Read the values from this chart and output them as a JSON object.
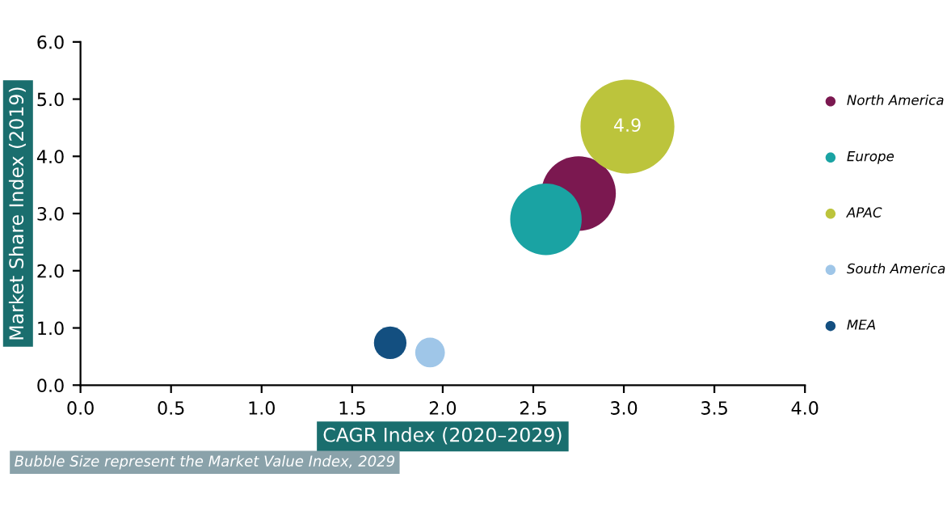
{
  "chart_data": {
    "type": "bubble",
    "xlabel": "CAGR Index (2020–2029)",
    "ylabel": "Market Share Index (2019)",
    "series": [
      {
        "name": "North America",
        "color": "#7b1850",
        "x": [
          2.75
        ],
        "values": [
          3.35
        ],
        "sizes": [
          0.63
        ]
      },
      {
        "name": "Europe",
        "color": "#1aa3a3",
        "x": [
          2.57
        ],
        "values": [
          2.9
        ],
        "sizes": [
          0.58
        ]
      },
      {
        "name": "APAC",
        "color": "#bcc43c",
        "x": [
          3.02
        ],
        "values": [
          4.52
        ],
        "sizes": [
          1
        ]
      },
      {
        "name": "South America",
        "color": "#9fc6e8",
        "x": [
          1.93
        ],
        "values": [
          0.57
        ],
        "sizes": [
          0.1
        ]
      },
      {
        "name": "MEA",
        "color": "#134f80",
        "x": [
          1.71
        ],
        "values": [
          0.74
        ],
        "sizes": [
          0.12
        ]
      }
    ],
    "annotations": [
      {
        "text": "4.9",
        "x": 3.02,
        "y": 4.52
      },
      "Bubble Size represent the Market Value Index, 2029"
    ],
    "xlim": [
      0,
      4
    ],
    "xticks": [
      {
        "value": 0,
        "label": "0.0"
      },
      0.5,
      {
        "value": 1,
        "label": "1.0"
      },
      1.5,
      {
        "value": 2,
        "label": "2.0"
      },
      2.5,
      {
        "value": 3,
        "label": "3.0"
      },
      3.5,
      {
        "value": 4,
        "label": "4.0"
      }
    ],
    "ylim": [
      0,
      6
    ],
    "yticks": [
      {
        "value": 0,
        "label": "0.0"
      },
      {
        "value": 1,
        "label": "1.0"
      },
      {
        "value": 2,
        "label": "2.0"
      },
      {
        "value": 3,
        "label": "3.0"
      },
      {
        "value": 4,
        "label": "4.0"
      },
      {
        "value": 5,
        "label": "5.0"
      },
      {
        "value": 6,
        "label": "6.0"
      }
    ],
    "grid": false,
    "legend": "right"
  }
}
